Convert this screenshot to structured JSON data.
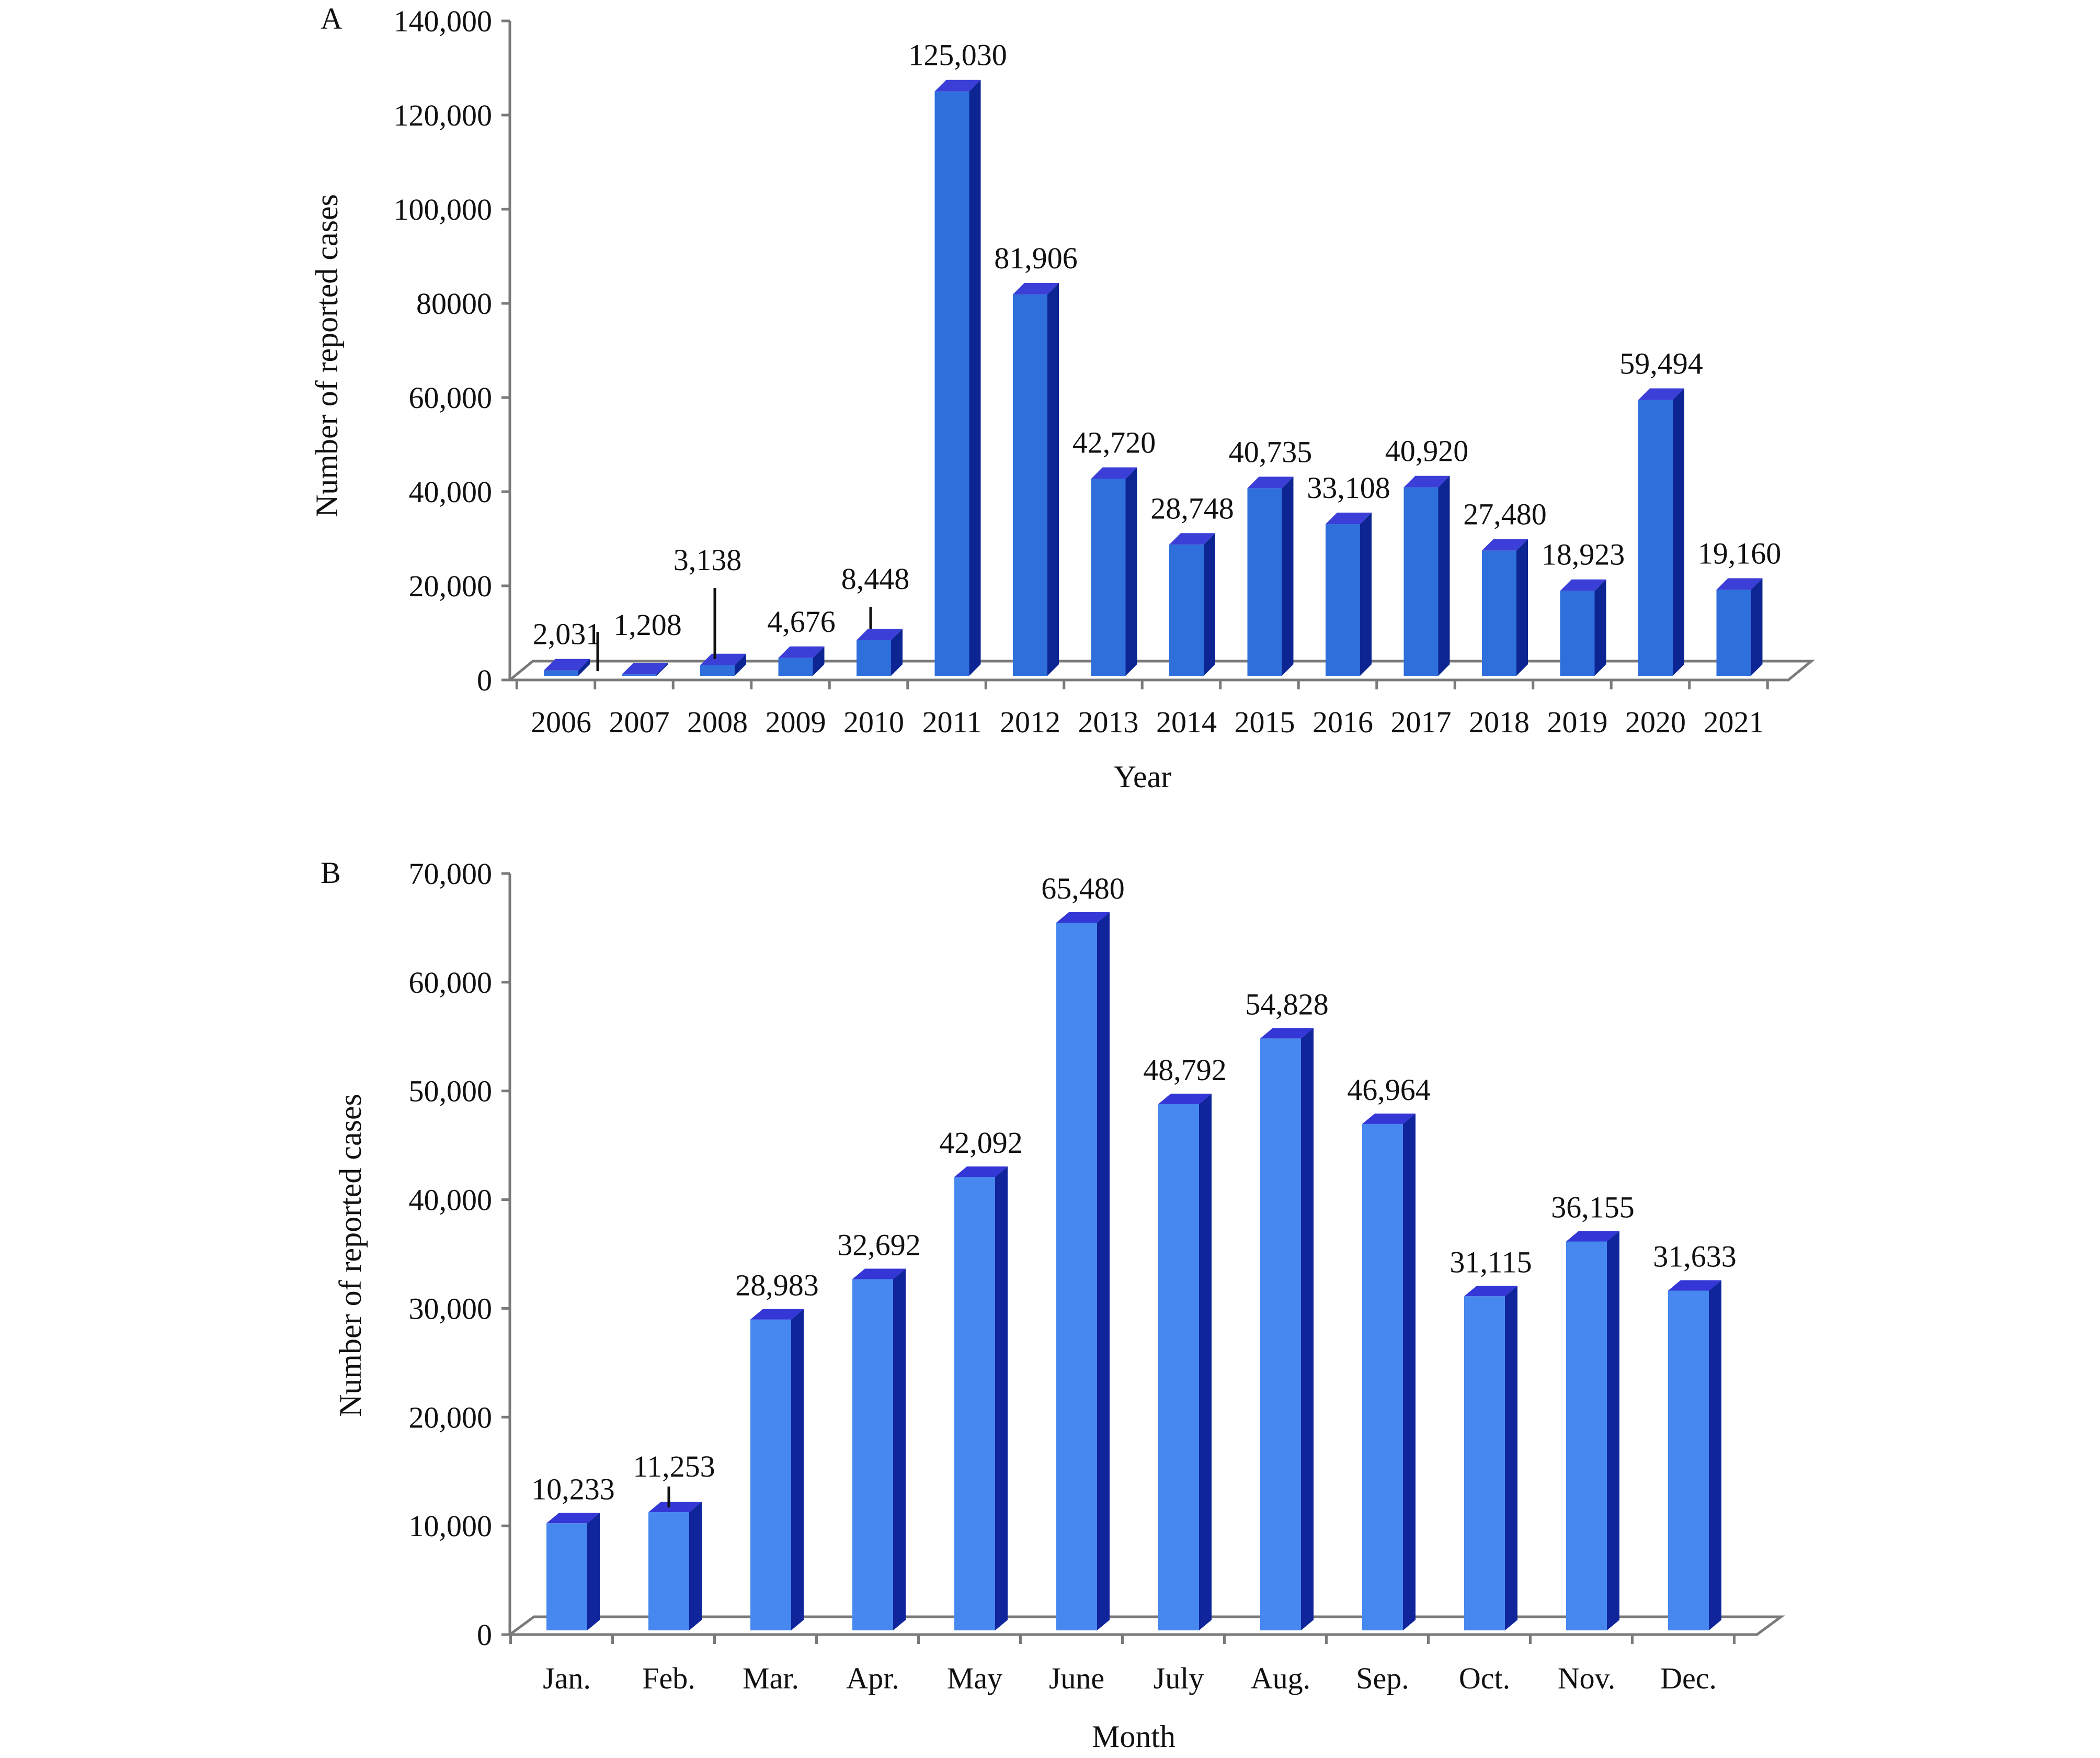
{
  "chart_data": [
    {
      "panel_label": "A",
      "type": "bar",
      "style": "3d",
      "xlabel": "Year",
      "ylabel": "Number of reported cases",
      "ylim": [
        0,
        140000
      ],
      "yticks": [
        0,
        20000,
        40000,
        60000,
        80000,
        100000,
        120000,
        140000
      ],
      "ytick_labels": [
        "0",
        "20,000",
        "40,000",
        "60,000",
        "80000",
        "100,000",
        "120,000",
        "140,000"
      ],
      "grid": false,
      "colors": {
        "front": "#2e6fdb",
        "side": "#0d2593",
        "top": "#3c3ed8"
      },
      "categories": [
        "2006",
        "2007",
        "2008",
        "2009",
        "2010",
        "2011",
        "2012",
        "2013",
        "2014",
        "2015",
        "2016",
        "2017",
        "2018",
        "2019",
        "2020",
        "2021"
      ],
      "values": [
        2031,
        1208,
        3138,
        4676,
        8448,
        125030,
        81906,
        42720,
        28748,
        40735,
        33108,
        40920,
        27480,
        18923,
        59494,
        19160
      ],
      "value_labels": [
        "2,031",
        "1,208",
        "3,138",
        "4,676",
        "8,448",
        "125,030",
        "81,906",
        "42,720",
        "28,748",
        "40,735",
        "33,108",
        "40,920",
        "27,480",
        "18,923",
        "59,494",
        "19,160"
      ]
    },
    {
      "panel_label": "B",
      "type": "bar",
      "style": "3d",
      "xlabel": "Month",
      "ylabel": "Number of reported cases",
      "ylim": [
        0,
        70000
      ],
      "yticks": [
        0,
        10000,
        20000,
        30000,
        40000,
        50000,
        60000,
        70000
      ],
      "ytick_labels": [
        "0",
        "10,000",
        "20,000",
        "30,000",
        "40,000",
        "50,000",
        "60,000",
        "70,000"
      ],
      "grid": false,
      "colors": {
        "front": "#4688ef",
        "side": "#10259b",
        "top": "#3436d6"
      },
      "categories": [
        "Jan.",
        "Feb.",
        "Mar.",
        "Apr.",
        "May",
        "June",
        "July",
        "Aug.",
        "Sep.",
        "Oct.",
        "Nov.",
        "Dec."
      ],
      "values": [
        10233,
        11253,
        28983,
        32692,
        42092,
        65480,
        48792,
        54828,
        46964,
        31115,
        36155,
        31633
      ],
      "value_labels": [
        "10,233",
        "11,253",
        "28,983",
        "32,692",
        "42,092",
        "65,480",
        "48,792",
        "54,828",
        "46,964",
        "31,115",
        "36,155",
        "31,633"
      ]
    }
  ]
}
